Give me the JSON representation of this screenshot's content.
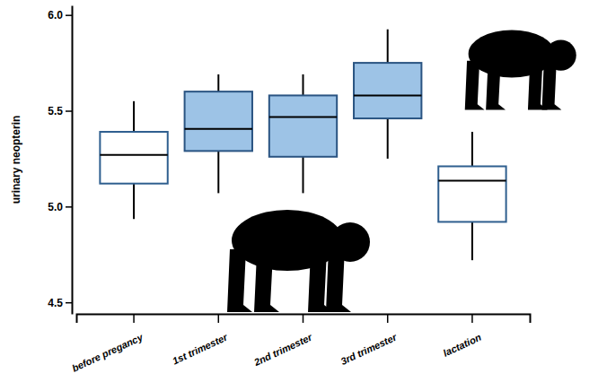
{
  "chart_data": {
    "type": "box",
    "y_label": "urinary neopterin",
    "categories": [
      "before pregancy",
      "1st trimester",
      "2nd trimester",
      "3rd trimester",
      "lactation"
    ],
    "whisker_low": [
      4.935,
      5.07,
      5.07,
      5.25,
      4.72
    ],
    "q1": [
      5.12,
      5.29,
      5.26,
      5.46,
      4.92
    ],
    "median": [
      5.27,
      5.405,
      5.467,
      5.58,
      5.135
    ],
    "q3": [
      5.39,
      5.6,
      5.58,
      5.75,
      5.21
    ],
    "whisker_high": [
      5.55,
      5.69,
      5.69,
      5.925,
      5.39
    ],
    "colors": [
      "#ffffff",
      "#9dc3e6",
      "#9dc3e6",
      "#9dc3e6",
      "#ffffff"
    ],
    "ylim": [
      4.44,
      6.05
    ],
    "yticks": [
      4.5,
      {
        "value": 5,
        "label": "5.0"
      },
      5.5,
      {
        "value": 6,
        "label": "6.0"
      }
    ],
    "grid": false
  }
}
